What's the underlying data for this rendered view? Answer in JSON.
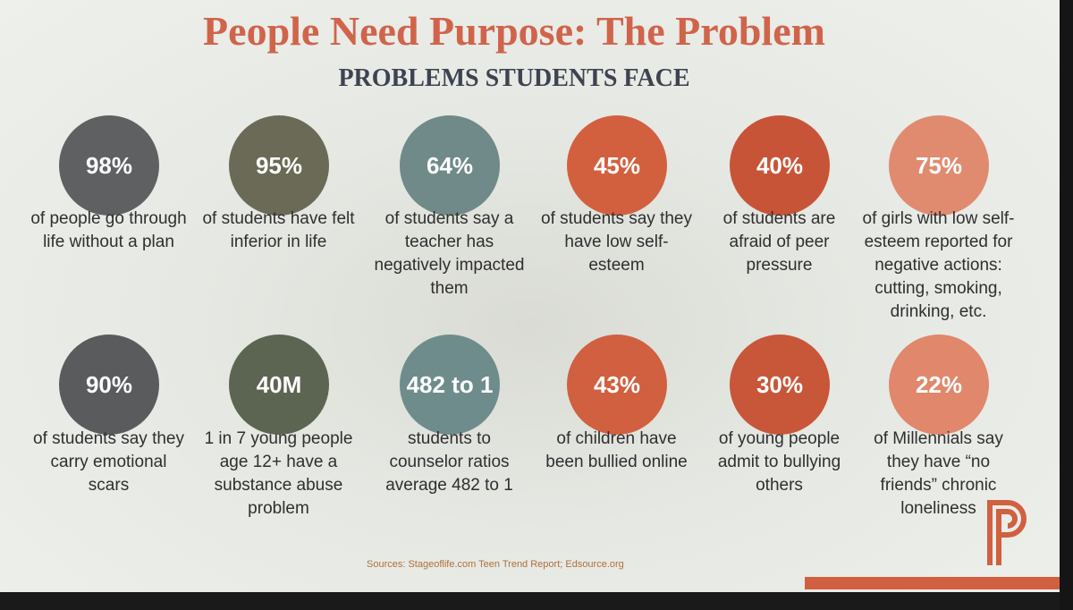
{
  "header": {
    "title": "People Need Purpose: The Problem",
    "subtitle": "PROBLEMS STUDENTS FACE"
  },
  "stats": [
    {
      "value": "98%",
      "caption": "of people go through life without a plan",
      "color": "#5f6062"
    },
    {
      "value": "95%",
      "caption": "of students have felt inferior in life",
      "color": "#6b6a56"
    },
    {
      "value": "64%",
      "caption": "of students say a teacher has negatively impacted them",
      "color": "#6f8a88"
    },
    {
      "value": "45%",
      "caption": "of students say they have low self-esteem",
      "color": "#d2603f"
    },
    {
      "value": "40%",
      "caption": "of students are afraid of peer pressure",
      "color": "#c85438"
    },
    {
      "value": "75%",
      "caption": "of girls with low self-esteem reported for negative actions: cutting, smoking, drinking, etc.",
      "color": "#e08b70"
    },
    {
      "value": "90%",
      "caption": "of students say they carry emotional scars",
      "color": "#5a5b5d"
    },
    {
      "value": "40M",
      "caption": "1 in 7 young people age 12+ have a substance abuse problem",
      "color": "#5c6552"
    },
    {
      "value": "482 to 1",
      "caption": "students to counselor ratios average 482 to 1",
      "color": "#6e8c8c"
    },
    {
      "value": "43%",
      "caption": "of children have been bullied online",
      "color": "#d0603f"
    },
    {
      "value": "30%",
      "caption": "of young people admit to bullying others",
      "color": "#c75738"
    },
    {
      "value": "22%",
      "caption": "of Millennials say they have “no friends” chronic loneliness",
      "color": "#e0876c"
    }
  ],
  "sources": "Sources: Stageoflife.com Teen Trend Report; Edsource.org"
}
